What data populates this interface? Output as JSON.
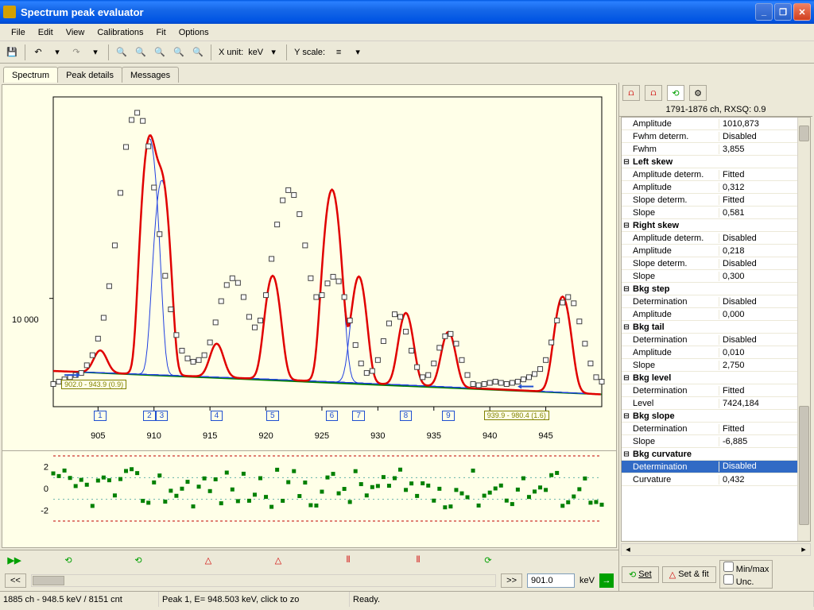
{
  "window": {
    "title": "Spectrum peak evaluator"
  },
  "menu": [
    "File",
    "Edit",
    "View",
    "Calibrations",
    "Fit",
    "Options"
  ],
  "toolbar": {
    "xunit_label": "X unit:",
    "xunit_value": "keV",
    "yscale_label": "Y scale:"
  },
  "tabs": {
    "items": [
      "Spectrum",
      "Peak details",
      "Messages"
    ],
    "active": 0
  },
  "spectrum": {
    "bg": "#ffffe8",
    "axis_color": "#000000",
    "fit_line_color": "#e00000",
    "component_color": "#2040e0",
    "baseline_color": "#008000",
    "marker_stroke": "#404040",
    "marker_fill": "#ffffff",
    "xticks": [
      905,
      910,
      915,
      920,
      925,
      930,
      935,
      940,
      945
    ],
    "xmin": 901,
    "xmax": 950,
    "ylog_label": "10 000",
    "peak_boxes": [
      {
        "n": "1",
        "x": 905.2
      },
      {
        "n": "2",
        "x": 909.6
      },
      {
        "n": "3",
        "x": 910.7
      },
      {
        "n": "4",
        "x": 915.6
      },
      {
        "n": "5",
        "x": 920.6
      },
      {
        "n": "6",
        "x": 925.9
      },
      {
        "n": "7",
        "x": 928.3
      },
      {
        "n": "8",
        "x": 932.5
      },
      {
        "n": "9",
        "x": 936.3
      }
    ],
    "regions": [
      {
        "label": "902.0 - 943.9 (0.9)",
        "x": 902
      },
      {
        "label": "939.9 - 980.4 (1.6)",
        "x": 939.9
      }
    ],
    "data_y": [
      2800,
      2900,
      3000,
      3100,
      3200,
      3300,
      3700,
      4300,
      5500,
      7500,
      12000,
      22000,
      48000,
      95000,
      142000,
      158000,
      140000,
      96000,
      52000,
      26000,
      14000,
      8500,
      5800,
      4600,
      4100,
      3900,
      4000,
      4300,
      5200,
      7000,
      9600,
      12200,
      13500,
      12600,
      10200,
      7600,
      6500,
      7200,
      10500,
      18000,
      30000,
      43000,
      50000,
      46500,
      35000,
      22000,
      13500,
      10200,
      10500,
      12500,
      13800,
      12900,
      10200,
      7200,
      5000,
      3800,
      3300,
      3400,
      4000,
      5300,
      6900,
      7900,
      7600,
      6100,
      4600,
      3600,
      3100,
      3200,
      3800,
      4800,
      5700,
      5900,
      5100,
      4000,
      3200,
      2800,
      2750,
      2800,
      2850,
      2900,
      2850,
      2800,
      2850,
      2900,
      3000,
      3100,
      3250,
      3500,
      4000,
      5200,
      7200,
      9400,
      10200,
      9300,
      7100,
      5100,
      3800,
      3100,
      2900
    ],
    "components": [
      {
        "c": 905.2,
        "a": 1300,
        "w": 1.3
      },
      {
        "c": 909.6,
        "a": 105000,
        "w": 1.15
      },
      {
        "c": 910.7,
        "a": 55000,
        "w": 1.15
      },
      {
        "c": 915.6,
        "a": 2000,
        "w": 1.3
      },
      {
        "c": 920.6,
        "a": 11000,
        "w": 1.3
      },
      {
        "c": 925.9,
        "a": 47500,
        "w": 1.3
      },
      {
        "c": 928.3,
        "a": 11000,
        "w": 1.25
      },
      {
        "c": 932.5,
        "a": 5300,
        "w": 1.3
      },
      {
        "c": 936.3,
        "a": 3400,
        "w": 1.3
      },
      {
        "c": 946.5,
        "a": 7800,
        "w": 1.4
      }
    ],
    "baseline_y0": 3400,
    "baseline_y1": 2400
  },
  "residuals": {
    "ymin": -3,
    "ymax": 3,
    "ticks": [
      -2,
      0,
      2
    ],
    "point_color": "#008000",
    "limit_color": "#c00000",
    "grid_color": "#008080"
  },
  "right": {
    "header": "1791-1876 ch, RXSQ: 0.9",
    "rows": [
      {
        "t": "r",
        "name": "Amplitude",
        "val": "1010,873"
      },
      {
        "t": "r",
        "name": "Fwhm determ.",
        "val": "Disabled"
      },
      {
        "t": "r",
        "name": "Fwhm",
        "val": "3,855"
      },
      {
        "t": "s",
        "name": "Left skew"
      },
      {
        "t": "r",
        "name": "Amplitude determ.",
        "val": "Fitted"
      },
      {
        "t": "r",
        "name": "Amplitude",
        "val": "0,312"
      },
      {
        "t": "r",
        "name": "Slope determ.",
        "val": "Fitted"
      },
      {
        "t": "r",
        "name": "Slope",
        "val": "0,581"
      },
      {
        "t": "s",
        "name": "Right skew"
      },
      {
        "t": "r",
        "name": "Amplitude determ.",
        "val": "Disabled"
      },
      {
        "t": "r",
        "name": "Amplitude",
        "val": "0,218"
      },
      {
        "t": "r",
        "name": "Slope determ.",
        "val": "Disabled"
      },
      {
        "t": "r",
        "name": "Slope",
        "val": "0,300"
      },
      {
        "t": "s",
        "name": "Bkg step"
      },
      {
        "t": "r",
        "name": "Determination",
        "val": "Disabled"
      },
      {
        "t": "r",
        "name": "Amplitude",
        "val": "0,000"
      },
      {
        "t": "s",
        "name": "Bkg tail"
      },
      {
        "t": "r",
        "name": "Determination",
        "val": "Disabled"
      },
      {
        "t": "r",
        "name": "Amplitude",
        "val": "0,010"
      },
      {
        "t": "r",
        "name": "Slope",
        "val": "2,750"
      },
      {
        "t": "s",
        "name": "Bkg level"
      },
      {
        "t": "r",
        "name": "Determination",
        "val": "Fitted"
      },
      {
        "t": "r",
        "name": "Level",
        "val": "7424,184"
      },
      {
        "t": "s",
        "name": "Bkg slope"
      },
      {
        "t": "r",
        "name": "Determination",
        "val": "Fitted"
      },
      {
        "t": "r",
        "name": "Slope",
        "val": "-6,885"
      },
      {
        "t": "s",
        "name": "Bkg curvature"
      },
      {
        "t": "r",
        "name": "Determination",
        "val": "Disabled",
        "sel": true
      },
      {
        "t": "r",
        "name": "Curvature",
        "val": "0,432"
      }
    ],
    "buttons": {
      "set": "Set",
      "setfit": "Set & fit",
      "minmax": "Min/max",
      "unc": "Unc."
    }
  },
  "bottom": {
    "value": "901.0",
    "unit": "keV",
    "nav_left": "<<",
    "nav_right": ">>"
  },
  "status": {
    "pos": "1885 ch - 948.5 keV / 8151 cnt",
    "peak": "Peak 1, E= 948.503 keV, click to zo",
    "ready": "Ready."
  }
}
